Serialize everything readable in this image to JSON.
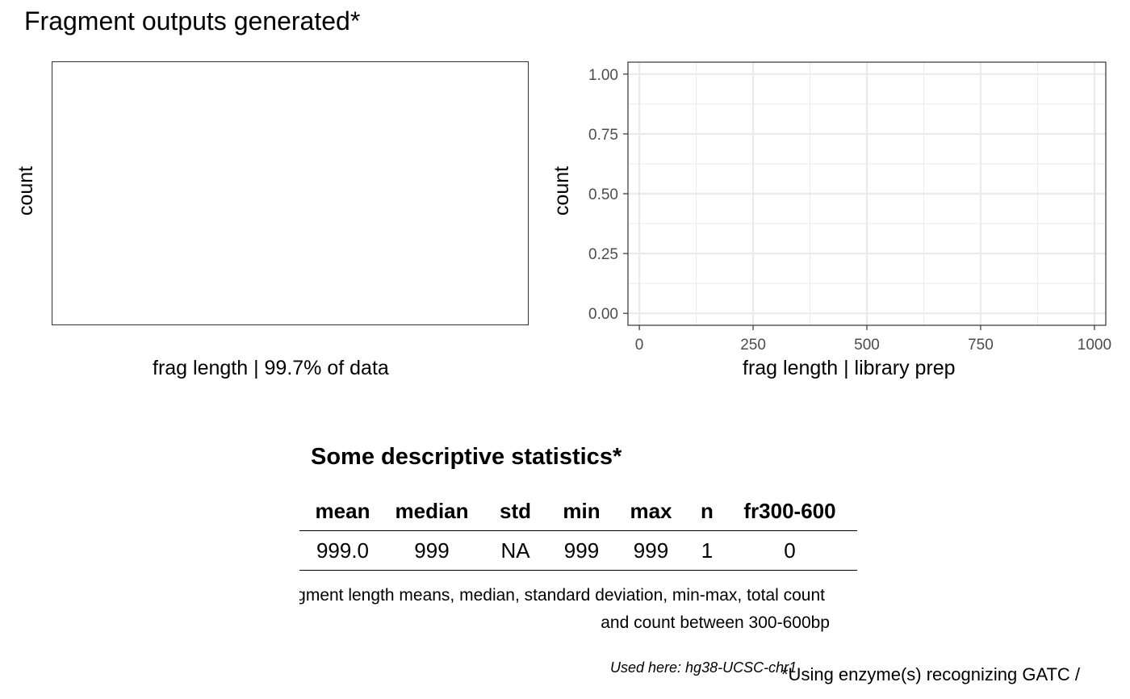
{
  "title": "Fragment outputs generated*",
  "left_panel": {
    "ylabel": "count",
    "xlabel": "frag length | 99.7% of data"
  },
  "right_panel": {
    "ylabel": "count",
    "xlabel": "frag length | library prep"
  },
  "chart_data": [
    {
      "type": "bar",
      "title": "",
      "xlabel": "frag length | 99.7% of data",
      "ylabel": "count",
      "series": [],
      "grid": false
    },
    {
      "type": "bar",
      "title": "",
      "xlabel": "frag length | library prep",
      "ylabel": "count",
      "xlim": [
        -25,
        1025
      ],
      "ylim": [
        -0.05,
        1.05
      ],
      "x_ticks": [
        0,
        250,
        500,
        750,
        1000
      ],
      "x_tick_labels": [
        "0",
        "250",
        "500",
        "750",
        "1000"
      ],
      "y_ticks": [
        0,
        0.25,
        0.5,
        0.75,
        1.0
      ],
      "y_tick_labels": [
        "0.00",
        "0.25",
        "0.50",
        "0.75",
        "1.00"
      ],
      "series": [],
      "grid": true,
      "grid_color": "#ebebeb"
    }
  ],
  "stats": {
    "title": "Some descriptive statistics*",
    "columns": [
      "mean",
      "median",
      "std",
      "min",
      "max",
      "n",
      "fr300-600"
    ],
    "rows": [
      [
        "999.0",
        "999",
        "NA",
        "999",
        "999",
        "1",
        "0"
      ]
    ],
    "footnote_line1": "*Fragment length means, median, standard deviation, min-max, total count",
    "footnote_line2": "and count between 300-600bp"
  },
  "genome_note": "Used here: hg38-UCSC-chr1",
  "enzyme_note": "*Using enzyme(s) recognizing GATC /"
}
